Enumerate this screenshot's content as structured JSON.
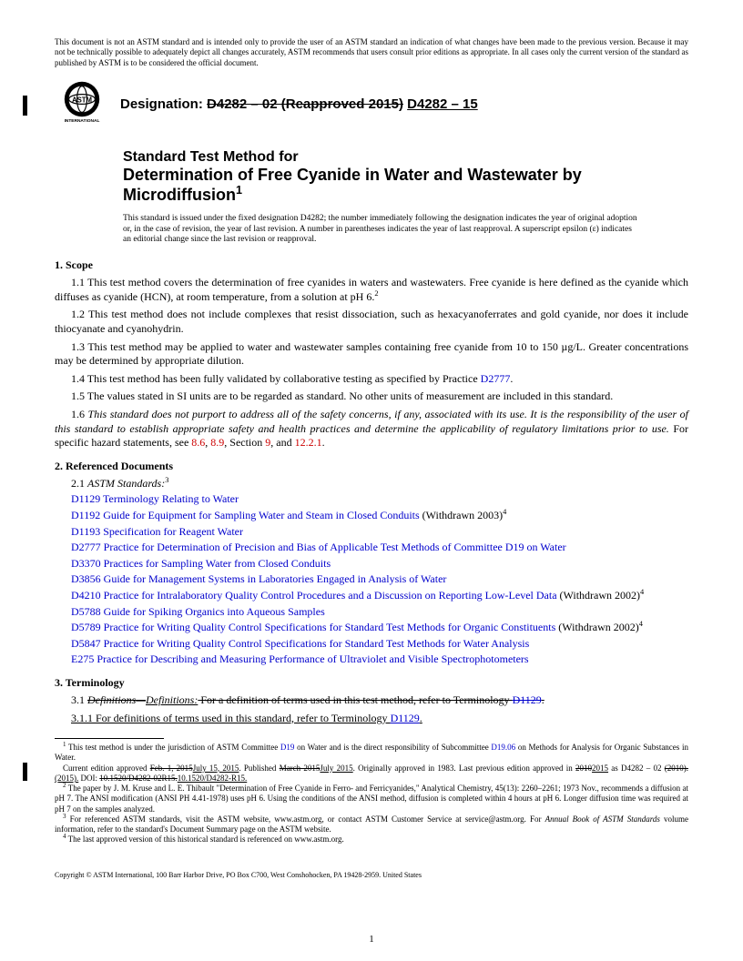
{
  "disclaimer": "This document is not an ASTM standard and is intended only to provide the user of an ASTM standard an indication of what changes have been made to the previous version. Because it may not be technically possible to adequately depict all changes accurately, ASTM recommends that users consult prior editions as appropriate. In all cases only the current version of the standard as published by ASTM is to be considered the official document.",
  "designation": {
    "label": "Designation:",
    "struck": "D4282 – 02 (Reapproved 2015)",
    "new": "D4282 – 15"
  },
  "title": {
    "sub": "Standard Test Method for",
    "main": "Determination of Free Cyanide in Water and Wastewater by Microdiffusion",
    "sup": "1"
  },
  "issuance": "This standard is issued under the fixed designation D4282; the number immediately following the designation indicates the year of original adoption or, in the case of revision, the year of last revision. A number in parentheses indicates the year of last reapproval. A superscript epsilon (ε) indicates an editorial change since the last revision or reapproval.",
  "sections": {
    "scope": {
      "head": "1. Scope",
      "p1_a": "1.1 This test method covers the determination of free cyanides in waters and wastewaters. Free cyanide is here defined as the cyanide which diffuses as cyanide (HCN), at room temperature, from a solution at pH 6.",
      "p1_sup": "2",
      "p2": "1.2 This test method does not include complexes that resist dissociation, such as hexacyanoferrates and gold cyanide, nor does it include thiocyanate and cyanohydrin.",
      "p3": "1.3 This test method may be applied to water and wastewater samples containing free cyanide from 10 to 150 µg/L. Greater concentrations may be determined by appropriate dilution.",
      "p4_a": "1.4 This test method has been fully validated by collaborative testing as specified by Practice ",
      "p4_ref": "D2777",
      "p4_b": ".",
      "p5": "1.5 The values stated in SI units are to be regarded as standard. No other units of measurement are included in this standard.",
      "p6_a": "1.6 ",
      "p6_ital": "This standard does not purport to address all of the safety concerns, if any, associated with its use. It is the responsibility of the user of this standard to establish appropriate safety and health practices and determine the applicability of regulatory limitations prior to use.",
      "p6_b": " For specific hazard statements, see ",
      "p6_r1": "8.6",
      "p6_c": ", ",
      "p6_r2": "8.9",
      "p6_d": ", Section ",
      "p6_r3": "9",
      "p6_e": ", and ",
      "p6_r4": "12.2.1",
      "p6_f": "."
    },
    "refs": {
      "head": "2. Referenced Documents",
      "sub_a": "2.1 ",
      "sub_i": "ASTM Standards:",
      "sub_sup": "3",
      "items": [
        {
          "code": "D1129",
          "title": "Terminology Relating to Water",
          "extra": ""
        },
        {
          "code": "D1192",
          "title": "Guide for Equipment for Sampling Water and Steam in Closed Conduits",
          "extra": " (Withdrawn 2003)",
          "sup": "4"
        },
        {
          "code": "D1193",
          "title": "Specification for Reagent Water",
          "extra": ""
        },
        {
          "code": "D2777",
          "title": "Practice for Determination of Precision and Bias of Applicable Test Methods of Committee D19 on Water",
          "extra": ""
        },
        {
          "code": "D3370",
          "title": "Practices for Sampling Water from Closed Conduits",
          "extra": ""
        },
        {
          "code": "D3856",
          "title": "Guide for Management Systems in Laboratories Engaged in Analysis of Water",
          "extra": ""
        },
        {
          "code": "D4210",
          "title": "Practice for Intralaboratory Quality Control Procedures and a Discussion on Reporting Low-Level Data",
          "extra": " (Withdrawn 2002)",
          "sup": "4"
        },
        {
          "code": "D5788",
          "title": "Guide for Spiking Organics into Aqueous Samples",
          "extra": ""
        },
        {
          "code": "D5789",
          "title": "Practice for Writing Quality Control Specifications for Standard Test Methods for Organic Constituents",
          "extra": " (Withdrawn 2002)",
          "sup": "4"
        },
        {
          "code": "D5847",
          "title": "Practice for Writing Quality Control Specifications for Standard Test Methods for Water Analysis",
          "extra": ""
        },
        {
          "code": "E275",
          "title": "Practice for Describing and Measuring Performance of Ultraviolet and Visible Spectrophotometers",
          "extra": ""
        }
      ]
    },
    "term": {
      "head": "3. Terminology",
      "p1_num": "3.1 ",
      "p1_strike_i": "Definitions—",
      "p1_new_i": "Definitions:",
      "p1_strike_rest_a": " For a definition of terms used in this test method, refer to Terminology ",
      "p1_strike_ref": "D1129",
      "p1_strike_rest_b": ".",
      "p2_num": "3.1.1 ",
      "p2_text_a": "For definitions of terms used in this standard, refer to Terminology ",
      "p2_ref": "D1129",
      "p2_text_b": "."
    }
  },
  "footnotes": {
    "f1_a": " This test method is under the jurisdiction of ASTM Committee ",
    "f1_r1": "D19",
    "f1_b": " on Water and is the direct responsibility of Subcommittee ",
    "f1_r2": "D19.06",
    "f1_c": " on Methods for Analysis for Organic Substances in Water.",
    "f1d_a": "Current edition approved ",
    "f1d_strike1": "Feb. 1, 2015",
    "f1d_new1": "July 15, 2015",
    "f1d_b": ". Published ",
    "f1d_strike2": "March 2015",
    "f1d_new2": "July 2015",
    "f1d_c": ". Originally approved in 1983. Last previous edition approved in ",
    "f1d_strike3": "2010",
    "f1d_new3": "2015",
    "f1d_d": " as D4282 – 02 ",
    "f1d_strike4": "(2010).",
    "f1d_new4": "(2015).",
    "f1d_e": " DOI: ",
    "f1d_strike5": "10.1520/D4282-02R15.",
    "f1d_new5": "10.1520/D4282-R15.",
    "f2": " The paper by J. M. Kruse and L. E. Thibault \"Determination of Free Cyanide in Ferro- and Ferricyanides,\" Analytical Chemistry, 45(13): 2260–2261; 1973 Nov., recommends a diffusion at pH 7. The ANSI modification (ANSI PH 4.41-1978) uses pH 6. Using the conditions of the ANSI method, diffusion is completed within 4 hours at pH 6. Longer diffusion time was required at pH 7 on the samples analyzed.",
    "f3_a": " For referenced ASTM standards, visit the ASTM website, www.astm.org, or contact ASTM Customer Service at service@astm.org. For ",
    "f3_i": "Annual Book of ASTM Standards",
    "f3_b": " volume information, refer to the standard's Document Summary page on the ASTM website.",
    "f4": " The last approved version of this historical standard is referenced on www.astm.org."
  },
  "copyright": "Copyright © ASTM International, 100 Barr Harbor Drive, PO Box C700, West Conshohocken, PA 19428-2959. United States",
  "page_number": "1",
  "colors": {
    "link_blue": "#0000cc",
    "xref_red": "#cc0000",
    "text": "#000000",
    "bg": "#ffffff"
  }
}
